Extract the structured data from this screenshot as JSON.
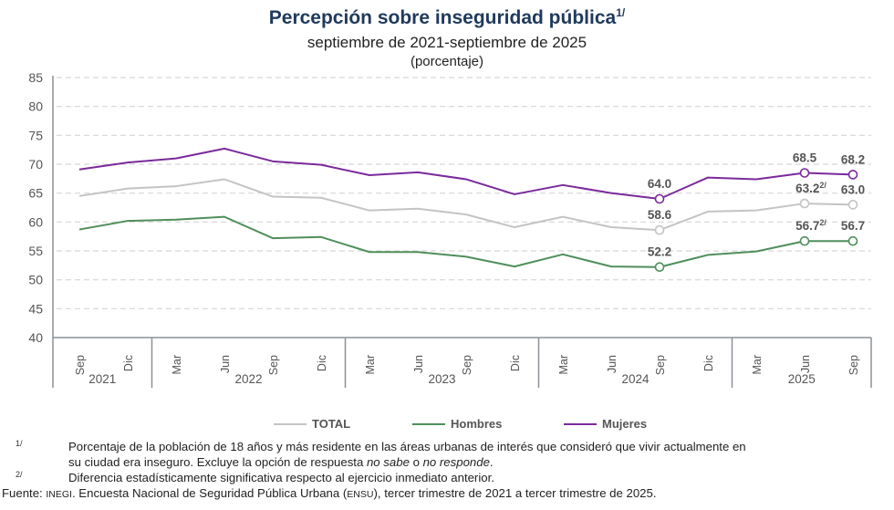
{
  "header": {
    "title": "Percepción sobre inseguridad pública",
    "title_note": "1/",
    "subtitle": "septiembre de 2021-septiembre de 2025",
    "unit": "(porcentaje)"
  },
  "chart_data": {
    "type": "line",
    "title": "Percepción sobre inseguridad pública",
    "subtitle": "septiembre de 2021-septiembre de 2025",
    "ylabel": "(porcentaje)",
    "xlabel": "",
    "ylim": [
      40,
      85
    ],
    "yticks": [
      40,
      45,
      50,
      55,
      60,
      65,
      70,
      75,
      80,
      85
    ],
    "grid": "horizontal dashed",
    "legend_position": "bottom",
    "x": [
      "Sep",
      "Dic",
      "Mar",
      "Jun",
      "Sep",
      "Dic",
      "Mar",
      "Jun",
      "Sep",
      "Dic",
      "Mar",
      "Jun",
      "Sep",
      "Dic",
      "Mar",
      "Jun",
      "Sep"
    ],
    "year_groups": [
      {
        "label": "2021",
        "count": 2
      },
      {
        "label": "2022",
        "count": 4
      },
      {
        "label": "2023",
        "count": 4
      },
      {
        "label": "2024",
        "count": 4
      },
      {
        "label": "2025",
        "count": 3
      }
    ],
    "series": [
      {
        "name": "TOTAL",
        "color": "#c4c4c4",
        "values": [
          64.5,
          65.8,
          66.2,
          67.4,
          64.4,
          64.2,
          62.0,
          62.3,
          61.3,
          59.1,
          60.9,
          59.1,
          58.6,
          61.8,
          62.0,
          63.2,
          63.0
        ],
        "labels": [
          null,
          null,
          null,
          null,
          null,
          null,
          null,
          null,
          null,
          null,
          null,
          null,
          "58.6",
          null,
          null,
          "63.2",
          "63.0"
        ],
        "label_notes": [
          null,
          null,
          null,
          null,
          null,
          null,
          null,
          null,
          null,
          null,
          null,
          null,
          null,
          null,
          null,
          "2/",
          null
        ],
        "label_position": "above"
      },
      {
        "name": "Hombres",
        "color": "#4f8f5b",
        "values": [
          58.7,
          60.2,
          60.4,
          60.9,
          57.2,
          57.4,
          54.8,
          54.8,
          54.0,
          52.3,
          54.4,
          52.3,
          52.2,
          54.3,
          54.9,
          56.7,
          56.7
        ],
        "labels": [
          null,
          null,
          null,
          null,
          null,
          null,
          null,
          null,
          null,
          null,
          null,
          null,
          "52.2",
          null,
          null,
          "56.7",
          "56.7"
        ],
        "label_notes": [
          null,
          null,
          null,
          null,
          null,
          null,
          null,
          null,
          null,
          null,
          null,
          null,
          null,
          null,
          null,
          "2/",
          null
        ],
        "label_position": "above"
      },
      {
        "name": "Mujeres",
        "color": "#7b2a9b",
        "values": [
          69.1,
          70.3,
          71.0,
          72.7,
          70.5,
          69.9,
          68.1,
          68.6,
          67.4,
          64.8,
          66.4,
          65.0,
          64.0,
          67.7,
          67.4,
          68.5,
          68.2
        ],
        "labels": [
          null,
          null,
          null,
          null,
          null,
          null,
          null,
          null,
          null,
          null,
          null,
          null,
          "64.0",
          null,
          null,
          "68.5",
          "68.2"
        ],
        "label_notes": [
          null,
          null,
          null,
          null,
          null,
          null,
          null,
          null,
          null,
          null,
          null,
          null,
          null,
          null,
          null,
          null,
          null
        ],
        "label_position": "above"
      }
    ]
  },
  "legend": [
    {
      "label": "TOTAL",
      "color": "#c4c4c4"
    },
    {
      "label": "Hombres",
      "color": "#4f8f5b"
    },
    {
      "label": "Mujeres",
      "color": "#7b2a9b"
    }
  ],
  "footnotes": [
    {
      "mark": "1/",
      "lines": [
        "Porcentaje de la población de 18 años y más residente en las áreas urbanas de interés que consideró que vivir actualmente en",
        "su ciudad era inseguro. Excluye la opción de respuesta "
      ],
      "italic_1": "no sabe",
      "mid": " o ",
      "italic_2": "no responde",
      "end": "."
    },
    {
      "mark": "2/",
      "lines": [
        "Diferencia estadísticamente significativa respecto al ejercicio inmediato anterior."
      ]
    }
  ],
  "source": {
    "prefix": "Fuente: ",
    "org": "INEGI",
    "text1": ". Encuesta Nacional de Seguridad Pública Urbana (",
    "abbr": "ENSU",
    "text2": "), tercer trimestre de 2021 a tercer trimestre de 2025."
  }
}
